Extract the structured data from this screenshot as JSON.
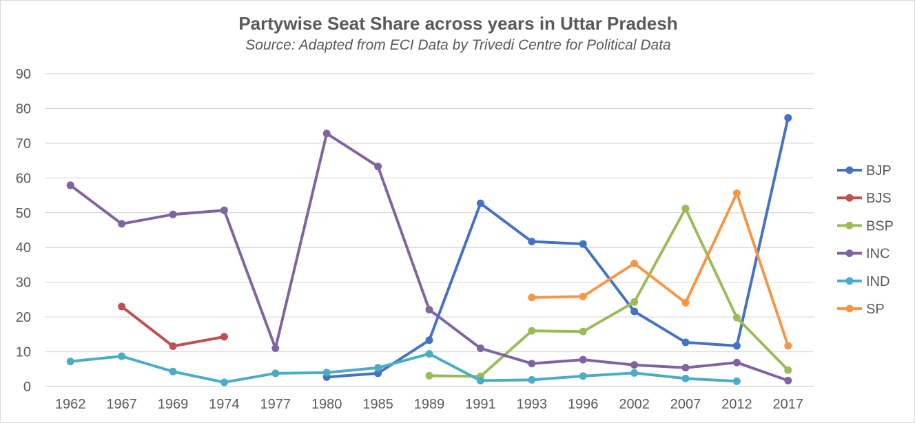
{
  "chart_data": {
    "type": "line",
    "title": "Partywise Seat Share across years in Uttar Pradesh",
    "subtitle": "Source: Adapted from ECI Data by Trivedi Centre for Political Data",
    "xlabel": "",
    "ylabel": "",
    "categories": [
      "1962",
      "1967",
      "1969",
      "1974",
      "1977",
      "1980",
      "1985",
      "1989",
      "1991",
      "1993",
      "1996",
      "2002",
      "2007",
      "2012",
      "2017"
    ],
    "ylim": [
      0,
      90
    ],
    "yticks": [
      0,
      10,
      20,
      30,
      40,
      50,
      60,
      70,
      80,
      90
    ],
    "grid": true,
    "legend_position": "right",
    "series": [
      {
        "name": "BJP",
        "color": "#4472c4",
        "values": [
          null,
          null,
          null,
          null,
          null,
          2.7,
          3.8,
          13.3,
          52.7,
          41.7,
          41.0,
          21.6,
          12.7,
          11.7,
          77.3
        ]
      },
      {
        "name": "BJS",
        "color": "#c0504d",
        "values": [
          null,
          23.0,
          11.6,
          14.3,
          null,
          null,
          null,
          null,
          null,
          null,
          null,
          null,
          null,
          null,
          null
        ]
      },
      {
        "name": "BSP",
        "color": "#9bbb59",
        "values": [
          null,
          null,
          null,
          null,
          null,
          null,
          null,
          3.1,
          2.9,
          16.0,
          15.8,
          24.3,
          51.2,
          19.8,
          4.7
        ]
      },
      {
        "name": "INC",
        "color": "#8064a2",
        "values": [
          57.9,
          46.8,
          49.5,
          50.7,
          11.0,
          72.8,
          63.3,
          22.1,
          11.0,
          6.6,
          7.7,
          6.2,
          5.4,
          6.9,
          1.7
        ]
      },
      {
        "name": "IND",
        "color": "#4bacc6",
        "values": [
          7.2,
          8.7,
          4.3,
          1.2,
          3.8,
          4.0,
          5.4,
          9.4,
          1.7,
          1.9,
          3.0,
          3.9,
          2.3,
          1.5,
          null
        ]
      },
      {
        "name": "SP",
        "color": "#f79646",
        "values": [
          null,
          null,
          null,
          null,
          null,
          null,
          null,
          null,
          null,
          25.6,
          25.9,
          35.4,
          24.1,
          55.6,
          11.7
        ]
      }
    ]
  }
}
